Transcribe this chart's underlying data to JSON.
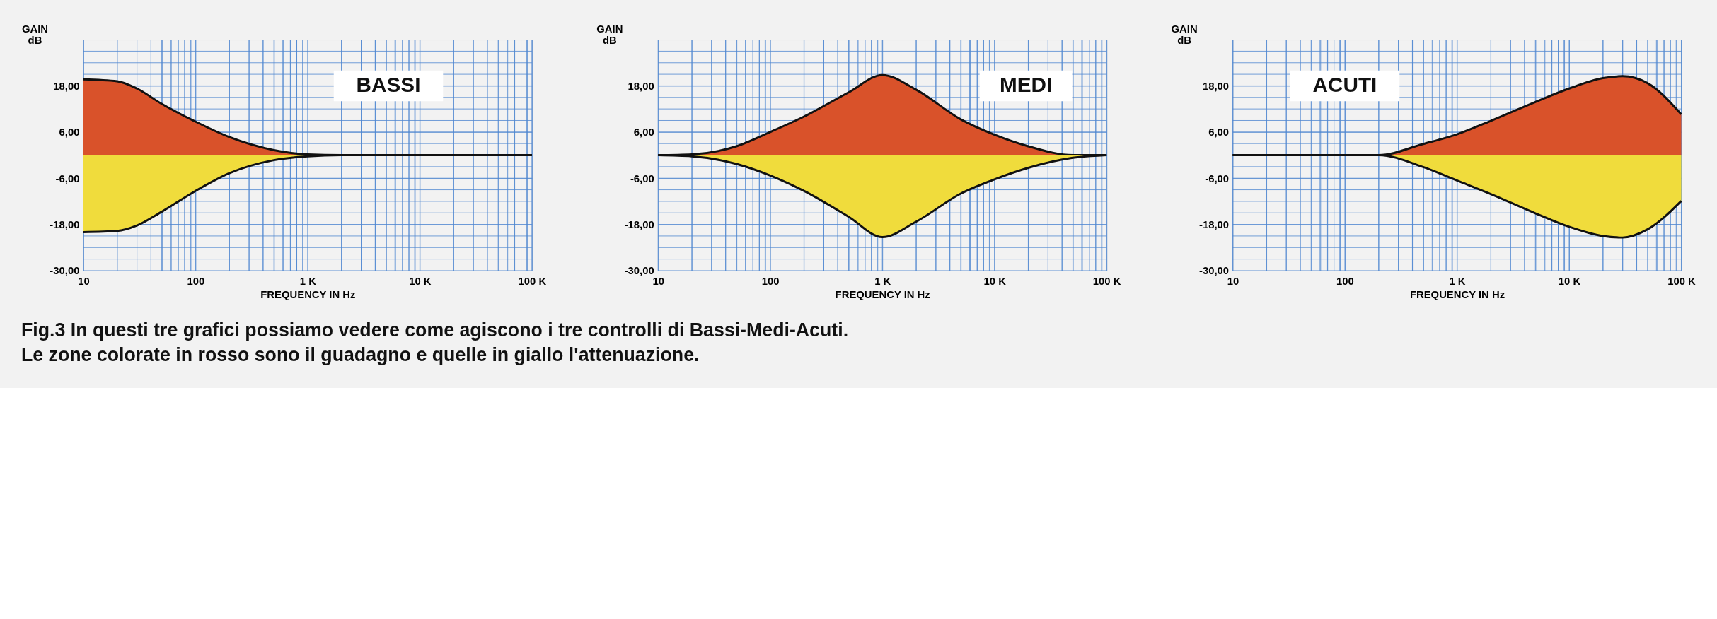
{
  "chart_data": [
    {
      "type": "area",
      "title": "BASSI",
      "xlabel": "FREQUENCY IN Hz",
      "ylabel": "GAIN dB",
      "log": "x",
      "grid": true,
      "annotations": [
        "Fig.3 In questi tre grafici possiamo vedere come agiscono i tre controlli di Bassi-Medi-Acuti. Le zone colorate in rosso sono il guadagno e quelle in giallo l'attenuazione."
      ],
      "x": [
        10,
        20,
        30,
        50,
        100,
        200,
        500,
        1000,
        2000,
        5000,
        10000,
        20000,
        50000,
        100000
      ],
      "series": [
        {
          "color": "#d9522a",
          "values": [
            19.7,
            19.2,
            17.3,
            13.3,
            8.7,
            4.7,
            1.3,
            0.2,
            0,
            0,
            0,
            0,
            0,
            0
          ]
        },
        {
          "color": "#f0dc3c",
          "values": [
            -20,
            -19.7,
            -18.3,
            -14.7,
            -9.3,
            -4.7,
            -1.3,
            -0.3,
            0,
            0,
            0,
            0,
            0,
            0
          ]
        }
      ],
      "xlim": [
        10,
        100000
      ],
      "ylim": [
        -30,
        30
      ],
      "xticks": [
        10,
        {
          "value": 20,
          "label": null
        },
        {
          "value": 30,
          "label": null
        },
        {
          "value": 40,
          "label": null
        },
        {
          "value": 50,
          "label": null
        },
        {
          "value": 60,
          "label": null
        },
        {
          "value": 70,
          "label": null
        },
        {
          "value": 80,
          "label": null
        },
        {
          "value": 90,
          "label": null
        },
        100,
        {
          "value": 200,
          "label": null
        },
        {
          "value": 300,
          "label": null
        },
        {
          "value": 400,
          "label": null
        },
        {
          "value": 500,
          "label": null
        },
        {
          "value": 600,
          "label": null
        },
        {
          "value": 700,
          "label": null
        },
        {
          "value": 800,
          "label": null
        },
        {
          "value": 900,
          "label": null
        },
        {
          "value": 1000,
          "label": "1 K"
        },
        {
          "value": 2000,
          "label": null
        },
        {
          "value": 3000,
          "label": null
        },
        {
          "value": 4000,
          "label": null
        },
        {
          "value": 5000,
          "label": null
        },
        {
          "value": 6000,
          "label": null
        },
        {
          "value": 7000,
          "label": null
        },
        {
          "value": 8000,
          "label": null
        },
        {
          "value": 9000,
          "label": null
        },
        {
          "value": 10000,
          "label": "10 K"
        },
        {
          "value": 20000,
          "label": null
        },
        {
          "value": 30000,
          "label": null
        },
        {
          "value": 40000,
          "label": null
        },
        {
          "value": 50000,
          "label": null
        },
        {
          "value": 60000,
          "label": null
        },
        {
          "value": 70000,
          "label": null
        },
        {
          "value": 80000,
          "label": null
        },
        {
          "value": 90000,
          "label": null
        },
        {
          "value": 100000,
          "label": "100 K"
        }
      ],
      "yticks": [
        {
          "value": -30,
          "label": "-30,00"
        },
        {
          "value": -27,
          "label": null
        },
        {
          "value": -24,
          "label": null
        },
        {
          "value": -21,
          "label": null
        },
        {
          "value": -18,
          "label": "-18,00"
        },
        {
          "value": -15,
          "label": null
        },
        {
          "value": -12,
          "label": null
        },
        {
          "value": -9,
          "label": null
        },
        {
          "value": -6,
          "label": "-6,00"
        },
        {
          "value": -3,
          "label": null
        },
        {
          "value": 0,
          "label": null
        },
        {
          "value": 3,
          "label": null
        },
        {
          "value": 6,
          "label": "6,00"
        },
        {
          "value": 9,
          "label": null
        },
        {
          "value": 12,
          "label": null
        },
        {
          "value": 15,
          "label": null
        },
        {
          "value": 18,
          "label": "18,00"
        },
        {
          "value": 21,
          "label": null
        },
        {
          "value": 24,
          "label": null
        },
        {
          "value": 27,
          "label": null
        }
      ]
    },
    {
      "type": "area",
      "title": "MEDI",
      "xlabel": "FREQUENCY IN Hz",
      "ylabel": "GAIN dB",
      "log": "x",
      "grid": true,
      "x": [
        10,
        20,
        50,
        100,
        200,
        500,
        1000,
        2000,
        5000,
        10000,
        20000,
        50000,
        100000
      ],
      "series": [
        {
          "color": "#d9522a",
          "values": [
            0,
            0.2,
            2.3,
            6,
            10,
            16.3,
            20.8,
            17,
            9.3,
            5.3,
            2.3,
            0,
            0
          ]
        },
        {
          "color": "#f0dc3c",
          "values": [
            0,
            -0.3,
            -2.3,
            -5.3,
            -9.3,
            -16,
            -21.3,
            -17.3,
            -10,
            -6.3,
            -3.3,
            -0.7,
            0
          ]
        }
      ],
      "xlim": [
        10,
        100000
      ],
      "ylim": [
        -30,
        30
      ],
      "xticks": [
        10,
        {
          "value": 20,
          "label": null
        },
        {
          "value": 30,
          "label": null
        },
        {
          "value": 40,
          "label": null
        },
        {
          "value": 50,
          "label": null
        },
        {
          "value": 60,
          "label": null
        },
        {
          "value": 70,
          "label": null
        },
        {
          "value": 80,
          "label": null
        },
        {
          "value": 90,
          "label": null
        },
        100,
        {
          "value": 200,
          "label": null
        },
        {
          "value": 300,
          "label": null
        },
        {
          "value": 400,
          "label": null
        },
        {
          "value": 500,
          "label": null
        },
        {
          "value": 600,
          "label": null
        },
        {
          "value": 700,
          "label": null
        },
        {
          "value": 800,
          "label": null
        },
        {
          "value": 900,
          "label": null
        },
        {
          "value": 1000,
          "label": "1 K"
        },
        {
          "value": 2000,
          "label": null
        },
        {
          "value": 3000,
          "label": null
        },
        {
          "value": 4000,
          "label": null
        },
        {
          "value": 5000,
          "label": null
        },
        {
          "value": 6000,
          "label": null
        },
        {
          "value": 7000,
          "label": null
        },
        {
          "value": 8000,
          "label": null
        },
        {
          "value": 9000,
          "label": null
        },
        {
          "value": 10000,
          "label": "10 K"
        },
        {
          "value": 20000,
          "label": null
        },
        {
          "value": 30000,
          "label": null
        },
        {
          "value": 40000,
          "label": null
        },
        {
          "value": 50000,
          "label": null
        },
        {
          "value": 60000,
          "label": null
        },
        {
          "value": 70000,
          "label": null
        },
        {
          "value": 80000,
          "label": null
        },
        {
          "value": 90000,
          "label": null
        },
        {
          "value": 100000,
          "label": "100 K"
        }
      ],
      "yticks": [
        {
          "value": -30,
          "label": "-30,00"
        },
        {
          "value": -27,
          "label": null
        },
        {
          "value": -24,
          "label": null
        },
        {
          "value": -21,
          "label": null
        },
        {
          "value": -18,
          "label": "-18,00"
        },
        {
          "value": -15,
          "label": null
        },
        {
          "value": -12,
          "label": null
        },
        {
          "value": -9,
          "label": null
        },
        {
          "value": -6,
          "label": "-6,00"
        },
        {
          "value": -3,
          "label": null
        },
        {
          "value": 0,
          "label": null
        },
        {
          "value": 3,
          "label": null
        },
        {
          "value": 6,
          "label": "6,00"
        },
        {
          "value": 9,
          "label": null
        },
        {
          "value": 12,
          "label": null
        },
        {
          "value": 15,
          "label": null
        },
        {
          "value": 18,
          "label": "18,00"
        },
        {
          "value": 21,
          "label": null
        },
        {
          "value": 24,
          "label": null
        },
        {
          "value": 27,
          "label": null
        }
      ]
    },
    {
      "type": "area",
      "title": "ACUTI",
      "xlabel": "FREQUENCY IN Hz",
      "ylabel": "GAIN dB",
      "log": "x",
      "grid": true,
      "x": [
        10,
        20,
        50,
        100,
        200,
        500,
        1000,
        2000,
        5000,
        10000,
        20000,
        30000,
        50000,
        100000
      ],
      "series": [
        {
          "color": "#d9522a",
          "values": [
            0,
            0,
            0,
            0,
            0,
            2.9,
            5.4,
            8.9,
            13.8,
            17.3,
            20,
            20.5,
            18.7,
            10.6
          ]
        },
        {
          "color": "#f0dc3c",
          "values": [
            0,
            0,
            0,
            0,
            0,
            -3.1,
            -6.6,
            -10.1,
            -15.1,
            -18.6,
            -21,
            -21.4,
            -19.3,
            -11.9
          ]
        }
      ],
      "xlim": [
        10,
        100000
      ],
      "ylim": [
        -30,
        30
      ],
      "xticks": [
        10,
        {
          "value": 20,
          "label": null
        },
        {
          "value": 30,
          "label": null
        },
        {
          "value": 40,
          "label": null
        },
        {
          "value": 50,
          "label": null
        },
        {
          "value": 60,
          "label": null
        },
        {
          "value": 70,
          "label": null
        },
        {
          "value": 80,
          "label": null
        },
        {
          "value": 90,
          "label": null
        },
        100,
        {
          "value": 200,
          "label": null
        },
        {
          "value": 300,
          "label": null
        },
        {
          "value": 400,
          "label": null
        },
        {
          "value": 500,
          "label": null
        },
        {
          "value": 600,
          "label": null
        },
        {
          "value": 700,
          "label": null
        },
        {
          "value": 800,
          "label": null
        },
        {
          "value": 900,
          "label": null
        },
        {
          "value": 1000,
          "label": "1 K"
        },
        {
          "value": 2000,
          "label": null
        },
        {
          "value": 3000,
          "label": null
        },
        {
          "value": 4000,
          "label": null
        },
        {
          "value": 5000,
          "label": null
        },
        {
          "value": 6000,
          "label": null
        },
        {
          "value": 7000,
          "label": null
        },
        {
          "value": 8000,
          "label": null
        },
        {
          "value": 9000,
          "label": null
        },
        {
          "value": 10000,
          "label": "10 K"
        },
        {
          "value": 20000,
          "label": null
        },
        {
          "value": 30000,
          "label": null
        },
        {
          "value": 40000,
          "label": null
        },
        {
          "value": 50000,
          "label": null
        },
        {
          "value": 60000,
          "label": null
        },
        {
          "value": 70000,
          "label": null
        },
        {
          "value": 80000,
          "label": null
        },
        {
          "value": 90000,
          "label": null
        },
        {
          "value": 100000,
          "label": "100 K"
        }
      ],
      "yticks": [
        {
          "value": -30,
          "label": "-30,00"
        },
        {
          "value": -27,
          "label": null
        },
        {
          "value": -24,
          "label": null
        },
        {
          "value": -21,
          "label": null
        },
        {
          "value": -18,
          "label": "-18,00"
        },
        {
          "value": -15,
          "label": null
        },
        {
          "value": -12,
          "label": null
        },
        {
          "value": -9,
          "label": null
        },
        {
          "value": -6,
          "label": "-6,00"
        },
        {
          "value": -3,
          "label": null
        },
        {
          "value": 0,
          "label": null
        },
        {
          "value": 3,
          "label": null
        },
        {
          "value": 6,
          "label": "6,00"
        },
        {
          "value": 9,
          "label": null
        },
        {
          "value": 12,
          "label": null
        },
        {
          "value": 15,
          "label": null
        },
        {
          "value": 18,
          "label": "18,00"
        },
        {
          "value": 21,
          "label": null
        },
        {
          "value": 24,
          "label": null
        },
        {
          "value": 27,
          "label": null
        }
      ]
    }
  ]
}
